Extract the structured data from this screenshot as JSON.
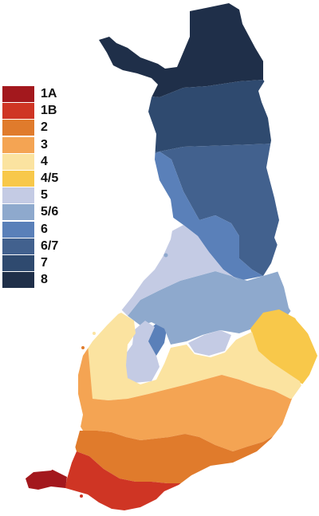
{
  "legend": [
    {
      "label": "1A",
      "color": "#a3181d"
    },
    {
      "label": "1B",
      "color": "#cf3524"
    },
    {
      "label": "2",
      "color": "#e07b2c"
    },
    {
      "label": "3",
      "color": "#f4a453"
    },
    {
      "label": "4",
      "color": "#fbe3a0"
    },
    {
      "label": "4/5",
      "color": "#f8c84a"
    },
    {
      "label": "5",
      "color": "#c4cbe4"
    },
    {
      "label": "5/6",
      "color": "#8ea9cd"
    },
    {
      "label": "6",
      "color": "#5a80b9"
    },
    {
      "label": "6/7",
      "color": "#42618e"
    },
    {
      "label": "7",
      "color": "#2f4a6f"
    },
    {
      "label": "8",
      "color": "#1f2f49"
    }
  ],
  "zones": {
    "z8": "8",
    "z7": "7",
    "z67": "6/7",
    "z6": "6",
    "z56": "5/6",
    "z5": "5",
    "z45": "4/5",
    "z4": "4",
    "z3": "3",
    "z2": "2",
    "z1b": "1B",
    "z1a": "1A"
  }
}
